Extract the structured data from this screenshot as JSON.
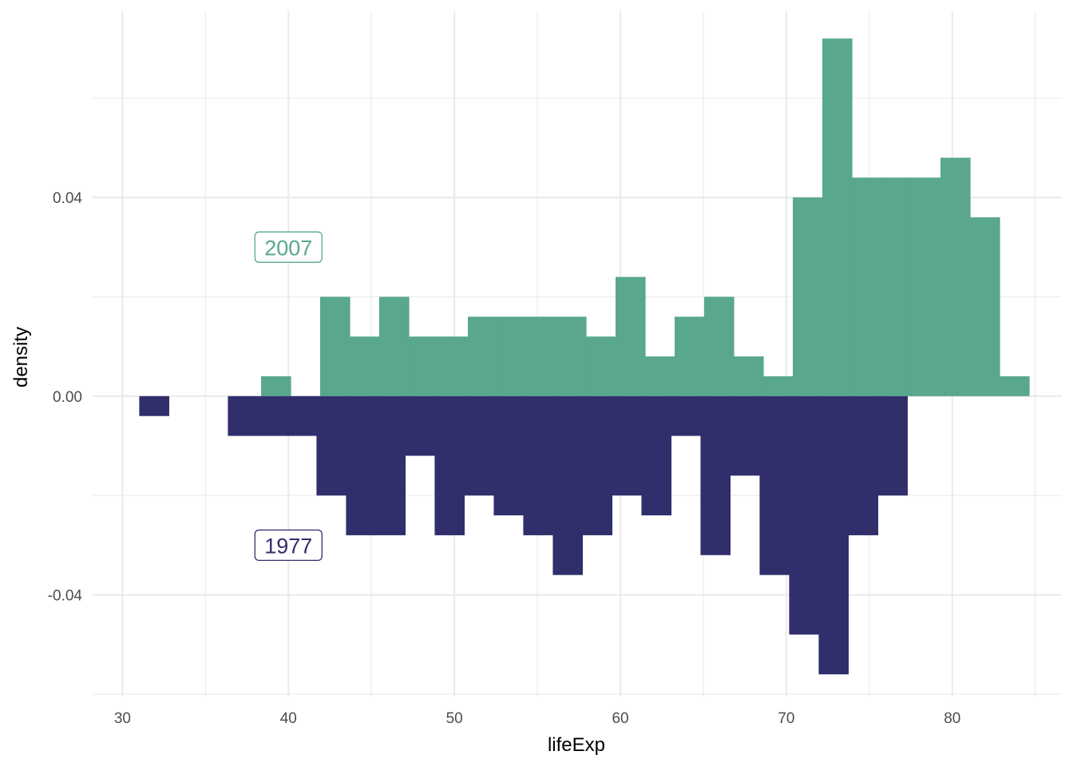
{
  "chart_data": {
    "type": "bar",
    "subtype": "mirrored-histogram",
    "xlabel": "lifeExp",
    "ylabel": "density",
    "xlim": [
      28.2,
      86.6
    ],
    "ylim": [
      -0.0605,
      0.0775
    ],
    "x_ticks": [
      30,
      40,
      50,
      60,
      70,
      80
    ],
    "x_tick_labels": [
      "30",
      "40",
      "50",
      "60",
      "70",
      "80"
    ],
    "y_ticks": [
      0.04,
      0.0,
      -0.04
    ],
    "y_tick_labels": [
      "0.04",
      "0.00",
      "-0.04"
    ],
    "grid": true,
    "legend": "none",
    "bin_width": 1.78,
    "series": [
      {
        "name": "2007",
        "color": "#59a78f",
        "direction": "up",
        "label_position": {
          "x": 40,
          "y": 0.03
        },
        "bins": [
          {
            "x": 39.24,
            "y": 0.004
          },
          {
            "x": 42.8,
            "y": 0.02
          },
          {
            "x": 44.58,
            "y": 0.012
          },
          {
            "x": 46.36,
            "y": 0.02
          },
          {
            "x": 48.14,
            "y": 0.012
          },
          {
            "x": 49.92,
            "y": 0.012
          },
          {
            "x": 51.7,
            "y": 0.016
          },
          {
            "x": 53.48,
            "y": 0.016
          },
          {
            "x": 55.26,
            "y": 0.016
          },
          {
            "x": 57.04,
            "y": 0.016
          },
          {
            "x": 58.82,
            "y": 0.012
          },
          {
            "x": 60.6,
            "y": 0.024
          },
          {
            "x": 62.38,
            "y": 0.008
          },
          {
            "x": 64.16,
            "y": 0.016
          },
          {
            "x": 65.94,
            "y": 0.02
          },
          {
            "x": 67.72,
            "y": 0.008
          },
          {
            "x": 69.5,
            "y": 0.004
          },
          {
            "x": 71.28,
            "y": 0.04
          },
          {
            "x": 73.06,
            "y": 0.072
          },
          {
            "x": 74.84,
            "y": 0.044
          },
          {
            "x": 76.62,
            "y": 0.044
          },
          {
            "x": 78.4,
            "y": 0.044
          },
          {
            "x": 80.18,
            "y": 0.048
          },
          {
            "x": 81.96,
            "y": 0.036
          },
          {
            "x": 83.74,
            "y": 0.004
          }
        ]
      },
      {
        "name": "1977",
        "color": "#312e6c",
        "direction": "down",
        "label_position": {
          "x": 40,
          "y": -0.03
        },
        "bins": [
          {
            "x": 31.9,
            "y": 0.004
          },
          {
            "x": 37.24,
            "y": 0.008
          },
          {
            "x": 39.02,
            "y": 0.008
          },
          {
            "x": 40.8,
            "y": 0.008
          },
          {
            "x": 42.58,
            "y": 0.02
          },
          {
            "x": 44.36,
            "y": 0.028
          },
          {
            "x": 46.14,
            "y": 0.028
          },
          {
            "x": 47.92,
            "y": 0.012
          },
          {
            "x": 49.7,
            "y": 0.028
          },
          {
            "x": 51.48,
            "y": 0.02
          },
          {
            "x": 53.26,
            "y": 0.024
          },
          {
            "x": 55.04,
            "y": 0.028
          },
          {
            "x": 56.82,
            "y": 0.036
          },
          {
            "x": 58.6,
            "y": 0.028
          },
          {
            "x": 60.38,
            "y": 0.02
          },
          {
            "x": 62.16,
            "y": 0.024
          },
          {
            "x": 63.94,
            "y": 0.008
          },
          {
            "x": 65.72,
            "y": 0.032
          },
          {
            "x": 67.5,
            "y": 0.016
          },
          {
            "x": 69.28,
            "y": 0.036
          },
          {
            "x": 71.06,
            "y": 0.048
          },
          {
            "x": 72.84,
            "y": 0.056
          },
          {
            "x": 74.62,
            "y": 0.028
          },
          {
            "x": 76.4,
            "y": 0.02
          }
        ]
      }
    ]
  }
}
